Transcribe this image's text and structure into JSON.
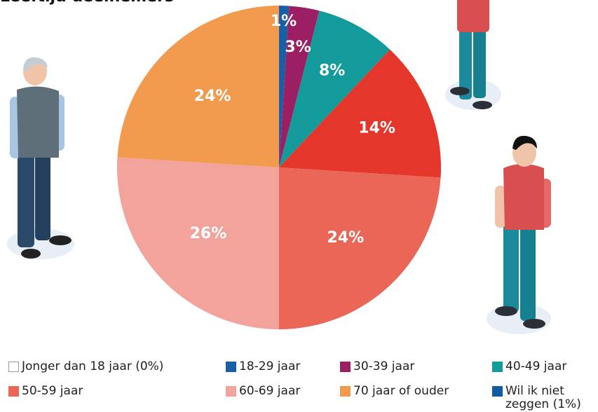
{
  "chart_data": {
    "type": "pie",
    "title": "Leeftijd deelnemers",
    "values": [
      1,
      3,
      8,
      14,
      24,
      26,
      24
    ],
    "value_labels": [
      "1%",
      "3%",
      "8%",
      "14%",
      "24%",
      "26%",
      "24%"
    ],
    "colors": [
      "#1b5ea8",
      "#9c1f63",
      "#139a9a",
      "#e4362b",
      "#ea6656",
      "#f2a39b",
      "#f29b4f"
    ],
    "legend": [
      {
        "name": "Jonger dan 18 jaar (0%)",
        "color": "#ffffff"
      },
      {
        "name": "18-29 jaar",
        "color": "#1b5ea8"
      },
      {
        "name": "30-39 jaar",
        "color": "#9c1f63"
      },
      {
        "name": "40-49 jaar",
        "color": "#139a9a"
      },
      {
        "name": "50-59 jaar",
        "color": "#ea6656"
      },
      {
        "name": "60-69 jaar",
        "color": "#f2a39b"
      },
      {
        "name": "70 jaar of ouder",
        "color": "#f29b4f"
      },
      {
        "name": "Wil ik niet zeggen (1%)",
        "color": "#0f5ca3"
      }
    ]
  }
}
